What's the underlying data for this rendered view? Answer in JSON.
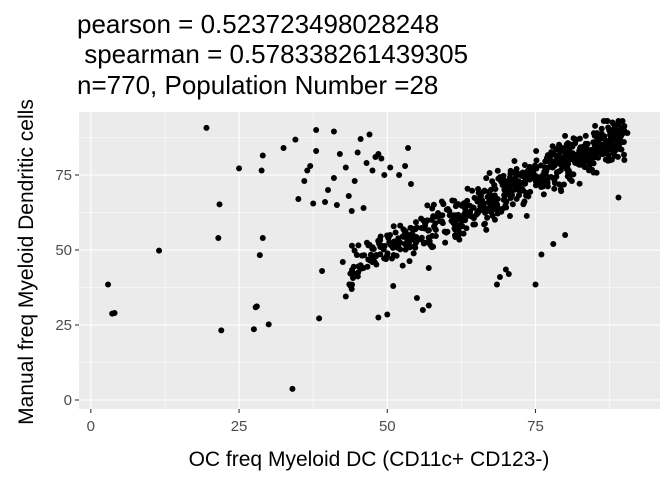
{
  "chart_data": {
    "type": "scatter",
    "title_lines": [
      "pearson = 0.523723498028248",
      " spearman = 0.578338261439305",
      "n=770, Population Number =28"
    ],
    "xlabel": "OC freq Myeloid DC (CD11c+ CD123-)",
    "ylabel": "Manual freq Myeloid Dendritic cells",
    "xlim": [
      -2,
      96
    ],
    "ylim": [
      -3,
      96
    ],
    "xticks": [
      0,
      25,
      50,
      75
    ],
    "yticks": [
      0,
      25,
      50,
      75
    ],
    "grid": true,
    "background_color": "#ebebeb",
    "point_color": "#000000",
    "outliers": [
      [
        2.9,
        38.5
      ],
      [
        3.6,
        28.8
      ],
      [
        4.0,
        29.0
      ],
      [
        11.5,
        49.8
      ],
      [
        19.5,
        90.7
      ],
      [
        21.5,
        54.0
      ],
      [
        21.7,
        65.2
      ],
      [
        22.0,
        23.2
      ],
      [
        25.0,
        77.2
      ],
      [
        27.5,
        23.6
      ],
      [
        27.8,
        30.9
      ],
      [
        28.0,
        31.2
      ],
      [
        28.5,
        48.3
      ],
      [
        28.8,
        76.5
      ],
      [
        29.0,
        81.5
      ],
      [
        29.0,
        54.0
      ],
      [
        30.0,
        25.2
      ],
      [
        32.5,
        84.0
      ],
      [
        34.0,
        3.7
      ],
      [
        34.5,
        86.8
      ],
      [
        35.0,
        67.0
      ],
      [
        36.0,
        73.0
      ],
      [
        37.0,
        78.0
      ],
      [
        37.5,
        65.5
      ],
      [
        38.0,
        90.0
      ],
      [
        38.0,
        83.0
      ],
      [
        38.5,
        27.2
      ],
      [
        39.0,
        43.0
      ],
      [
        39.5,
        66.0
      ],
      [
        40.0,
        70.0
      ],
      [
        41.0,
        74.0
      ],
      [
        41.5,
        65.0
      ],
      [
        42.0,
        82.0
      ],
      [
        43.0,
        77.5
      ],
      [
        43.5,
        68.0
      ],
      [
        44.0,
        37.0
      ],
      [
        44.5,
        73.0
      ],
      [
        45.0,
        82.5
      ],
      [
        45.5,
        87.0
      ],
      [
        46.0,
        64.0
      ],
      [
        46.5,
        79.0
      ],
      [
        47.0,
        88.5
      ],
      [
        48.0,
        81.0
      ],
      [
        48.5,
        82.0
      ],
      [
        49.0,
        80.5
      ],
      [
        49.5,
        75.0
      ],
      [
        48.5,
        27.5
      ],
      [
        50.0,
        28.5
      ],
      [
        51.0,
        38.0
      ],
      [
        52.0,
        75.0
      ],
      [
        53.0,
        78.0
      ],
      [
        54.0,
        72.0
      ],
      [
        55.0,
        34.0
      ],
      [
        56.0,
        30.0
      ],
      [
        57.0,
        31.5
      ],
      [
        43.0,
        34.5
      ],
      [
        41.0,
        89.5
      ],
      [
        36.5,
        76.5
      ],
      [
        44.0,
        63.0
      ],
      [
        47.5,
        76.5
      ],
      [
        50.5,
        77.5
      ],
      [
        53.5,
        84.0
      ],
      [
        57.0,
        44.0
      ],
      [
        46.0,
        44.0
      ],
      [
        68.5,
        38.5
      ],
      [
        69.0,
        41.0
      ],
      [
        70.0,
        43.5
      ],
      [
        70.5,
        42.0
      ],
      [
        75.0,
        38.5
      ],
      [
        76.0,
        48.5
      ],
      [
        78.0,
        52.0
      ],
      [
        80.0,
        55.0
      ],
      [
        89.0,
        67.5
      ],
      [
        88.5,
        90.0
      ],
      [
        89.5,
        90.5
      ],
      [
        90.5,
        89.0
      ],
      [
        87.5,
        86.5
      ],
      [
        89.5,
        83.5
      ],
      [
        42.5,
        46.0
      ],
      [
        55.0,
        57.5
      ]
    ],
    "main_cluster": {
      "n": 690,
      "x_range": [
        43,
        90
      ],
      "trend": {
        "slope": 0.95,
        "intercept": 3.0
      },
      "y_spread": 7.5,
      "y_clamp": [
        30,
        93
      ]
    }
  }
}
